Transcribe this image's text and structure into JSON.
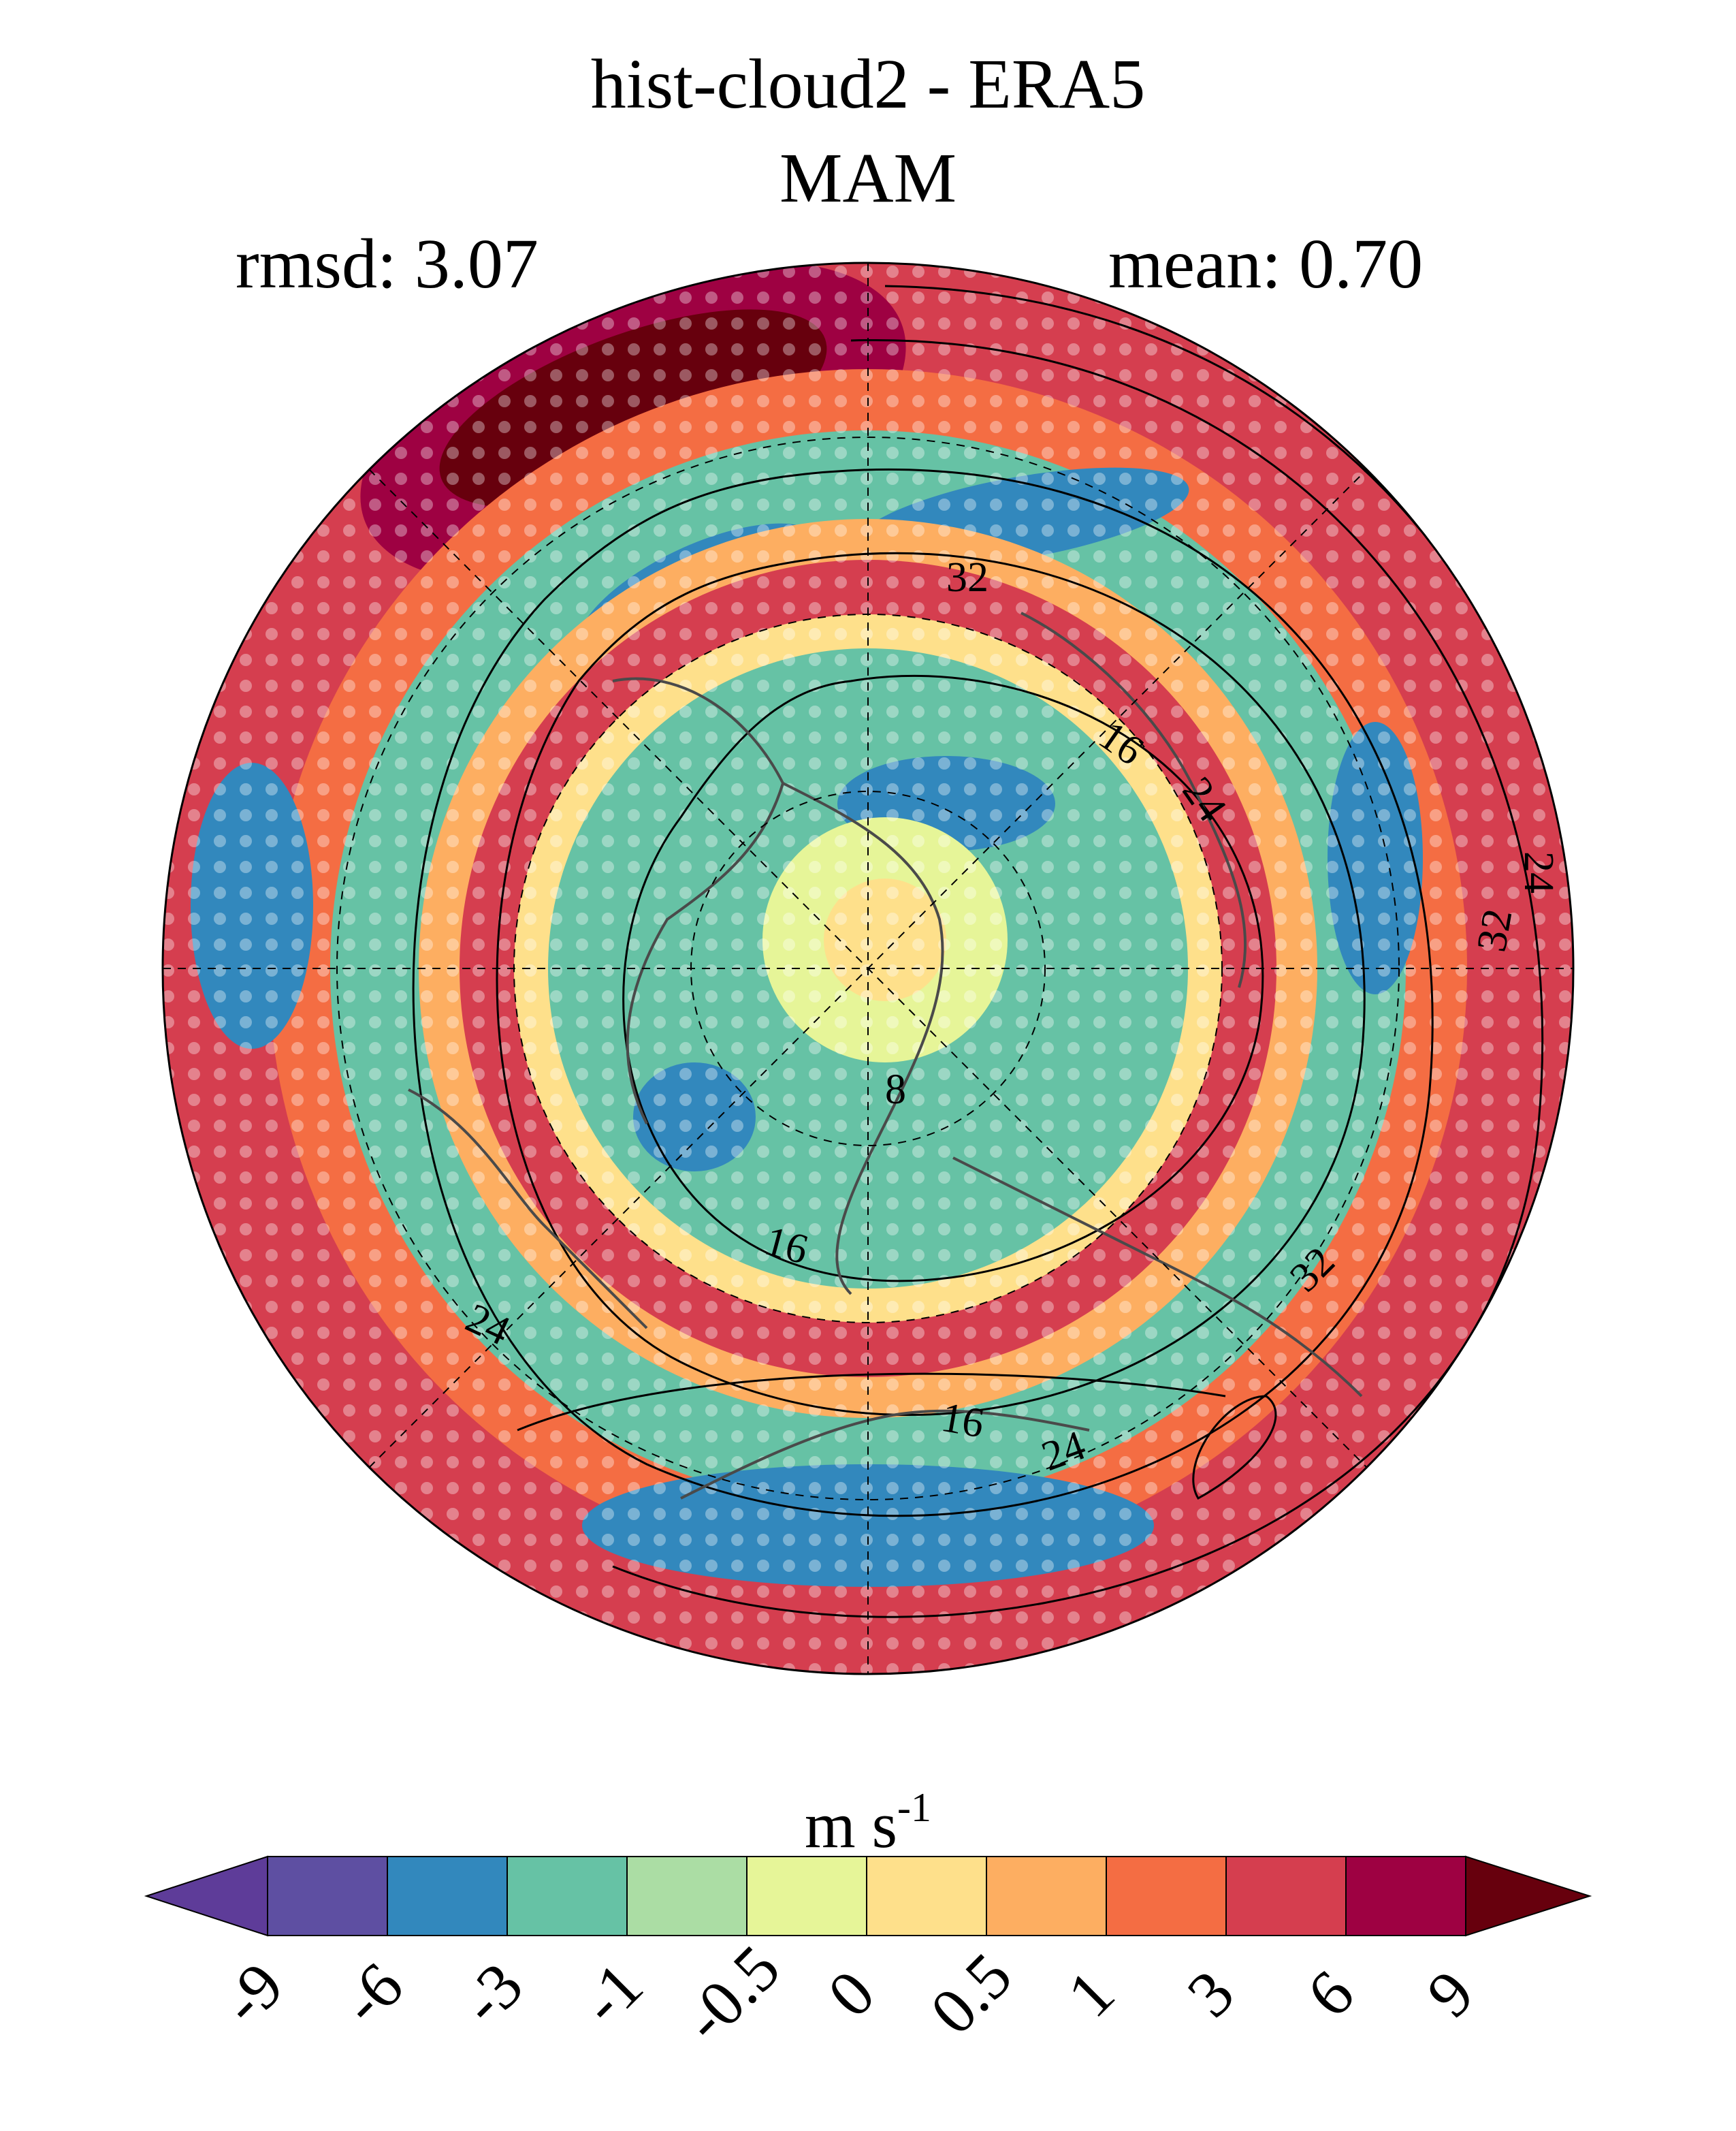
{
  "figure": {
    "title_line1": "hist-cloud2 - ERA5",
    "title_line2": "MAM",
    "rmsd_text": "rmsd: 3.07",
    "mean_text": "mean: 0.70"
  },
  "colorbar": {
    "units_base": "m s",
    "units_exp": "-1",
    "ticks": [
      "-9",
      "-6",
      "-3",
      "-1",
      "-0.5",
      "0",
      "0.5",
      "1",
      "3",
      "6",
      "9"
    ],
    "colors": [
      "#5e3c99",
      "#5e4fa2",
      "#3288bd",
      "#66c2a5",
      "#abdda4",
      "#e6f598",
      "#fee08b",
      "#fdae61",
      "#f46d43",
      "#d53e4f",
      "#9e0142",
      "#67000d"
    ]
  },
  "contours": {
    "labels": [
      "32",
      "16",
      "24",
      "24",
      "32",
      "8",
      "16",
      "24",
      "32",
      "16",
      "24"
    ]
  }
}
